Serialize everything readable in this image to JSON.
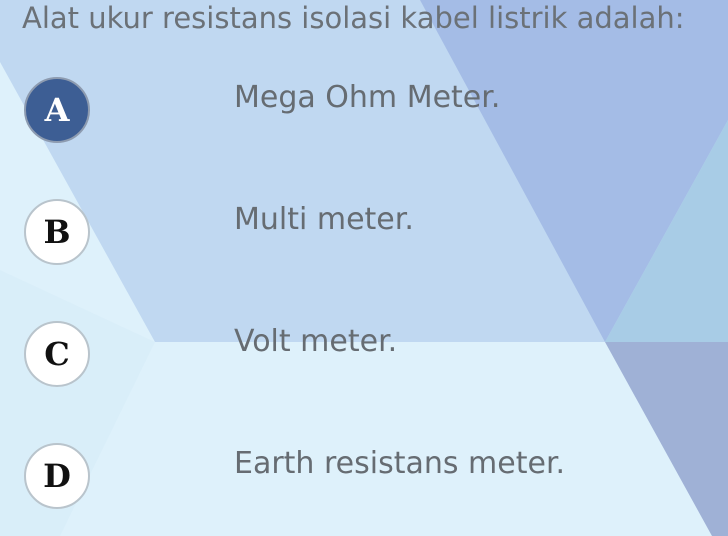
{
  "question": "Alat ukur resistans isolasi kabel listrik adalah:",
  "selected_option": "A",
  "options": [
    {
      "letter": "A",
      "text": "Mega Ohm Meter."
    },
    {
      "letter": "B",
      "text": "Multi meter."
    },
    {
      "letter": "C",
      "text": "Volt meter."
    },
    {
      "letter": "D",
      "text": "Earth resistans meter."
    }
  ],
  "colors": {
    "selected_badge": "#3d5e94",
    "text": "#666c72",
    "page_background": "#def1fb"
  }
}
